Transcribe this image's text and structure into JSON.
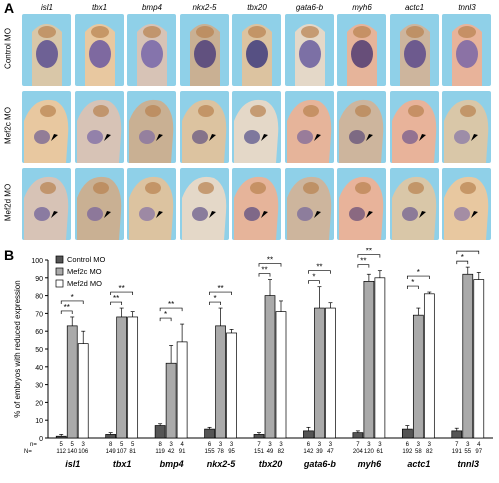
{
  "panelA": {
    "letter": "A",
    "genes": [
      "isl1",
      "tbx1",
      "bmp4",
      "nkx2-5",
      "tbx20",
      "gata6-b",
      "myh6",
      "actc1",
      "tnnl3"
    ],
    "rows": [
      "Control MO",
      "Mef2c MO",
      "Mef2d MO"
    ],
    "background": "#8fd0e8"
  },
  "panelB": {
    "letter": "B",
    "n_label": "n=",
    "N_label": "N=",
    "n_values": [
      [
        "5",
        "5",
        "3"
      ],
      [
        "8",
        "5",
        "5"
      ],
      [
        "8",
        "3",
        "4"
      ],
      [
        "6",
        "3",
        "3"
      ],
      [
        "7",
        "3",
        "3"
      ],
      [
        "6",
        "3",
        "3"
      ],
      [
        "7",
        "3",
        "3"
      ],
      [
        "6",
        "3",
        "3"
      ],
      [
        "7",
        "3",
        "4"
      ]
    ],
    "N_values": [
      [
        "112",
        "140",
        "106"
      ],
      [
        "149",
        "107",
        "81"
      ],
      [
        "119",
        "42",
        "91"
      ],
      [
        "155",
        "78",
        "95"
      ],
      [
        "151",
        "49",
        "82"
      ],
      [
        "142",
        "39",
        "47"
      ],
      [
        "204",
        "120",
        "61"
      ],
      [
        "192",
        "58",
        "82"
      ],
      [
        "191",
        "55",
        "97"
      ]
    ]
  },
  "chart_data": {
    "type": "bar",
    "ylabel": "% of embryos with reduced expression",
    "ylim": [
      0,
      100
    ],
    "yticks": [
      0,
      10,
      20,
      30,
      40,
      50,
      60,
      70,
      80,
      90,
      100
    ],
    "categories": [
      "isl1",
      "tbx1",
      "bmp4",
      "nkx2-5",
      "tbx20",
      "gata6-b",
      "myh6",
      "actc1",
      "tnnl3"
    ],
    "series": [
      {
        "name": "Control MO",
        "color": "#555555",
        "values": [
          1,
          2,
          7,
          5,
          2,
          4,
          3,
          5,
          4
        ],
        "errors": [
          1,
          1,
          1,
          1,
          1,
          2,
          1,
          2,
          1.5
        ]
      },
      {
        "name": "Mef2c MO",
        "color": "#aaaaaa",
        "values": [
          63,
          68,
          42,
          63,
          80,
          73,
          88,
          69,
          92
        ],
        "errors": [
          5,
          5,
          10,
          10,
          9,
          12,
          4,
          4,
          4
        ]
      },
      {
        "name": "Mef2d MO",
        "color": "#ffffff",
        "values": [
          53,
          68,
          54,
          59,
          71,
          73,
          90,
          81,
          89
        ],
        "errors": [
          7,
          3,
          10,
          2,
          6,
          3,
          4,
          1,
          4
        ]
      }
    ],
    "significance": [
      {
        "category": "isl1",
        "pair": "control-mef2c",
        "label": "**"
      },
      {
        "category": "isl1",
        "pair": "control-mef2d",
        "label": "*"
      },
      {
        "category": "tbx1",
        "pair": "control-mef2c",
        "label": "**"
      },
      {
        "category": "tbx1",
        "pair": "control-mef2d",
        "label": "**"
      },
      {
        "category": "bmp4",
        "pair": "control-mef2c",
        "label": "*"
      },
      {
        "category": "bmp4",
        "pair": "control-mef2d",
        "label": "**"
      },
      {
        "category": "nkx2-5",
        "pair": "control-mef2c",
        "label": "*"
      },
      {
        "category": "nkx2-5",
        "pair": "control-mef2d",
        "label": "**"
      },
      {
        "category": "tbx20",
        "pair": "control-mef2c",
        "label": "**"
      },
      {
        "category": "tbx20",
        "pair": "control-mef2d",
        "label": "**"
      },
      {
        "category": "gata6-b",
        "pair": "control-mef2c",
        "label": "*"
      },
      {
        "category": "gata6-b",
        "pair": "control-mef2d",
        "label": "**"
      },
      {
        "category": "myh6",
        "pair": "control-mef2c",
        "label": "**"
      },
      {
        "category": "myh6",
        "pair": "control-mef2d",
        "label": "**"
      },
      {
        "category": "actc1",
        "pair": "control-mef2c",
        "label": "*"
      },
      {
        "category": "actc1",
        "pair": "control-mef2d",
        "label": "*"
      },
      {
        "category": "tnnl3",
        "pair": "control-mef2c",
        "label": "*"
      },
      {
        "category": "tnnl3",
        "pair": "control-mef2d",
        "label": "**"
      }
    ],
    "legend_placement": "top-left"
  }
}
